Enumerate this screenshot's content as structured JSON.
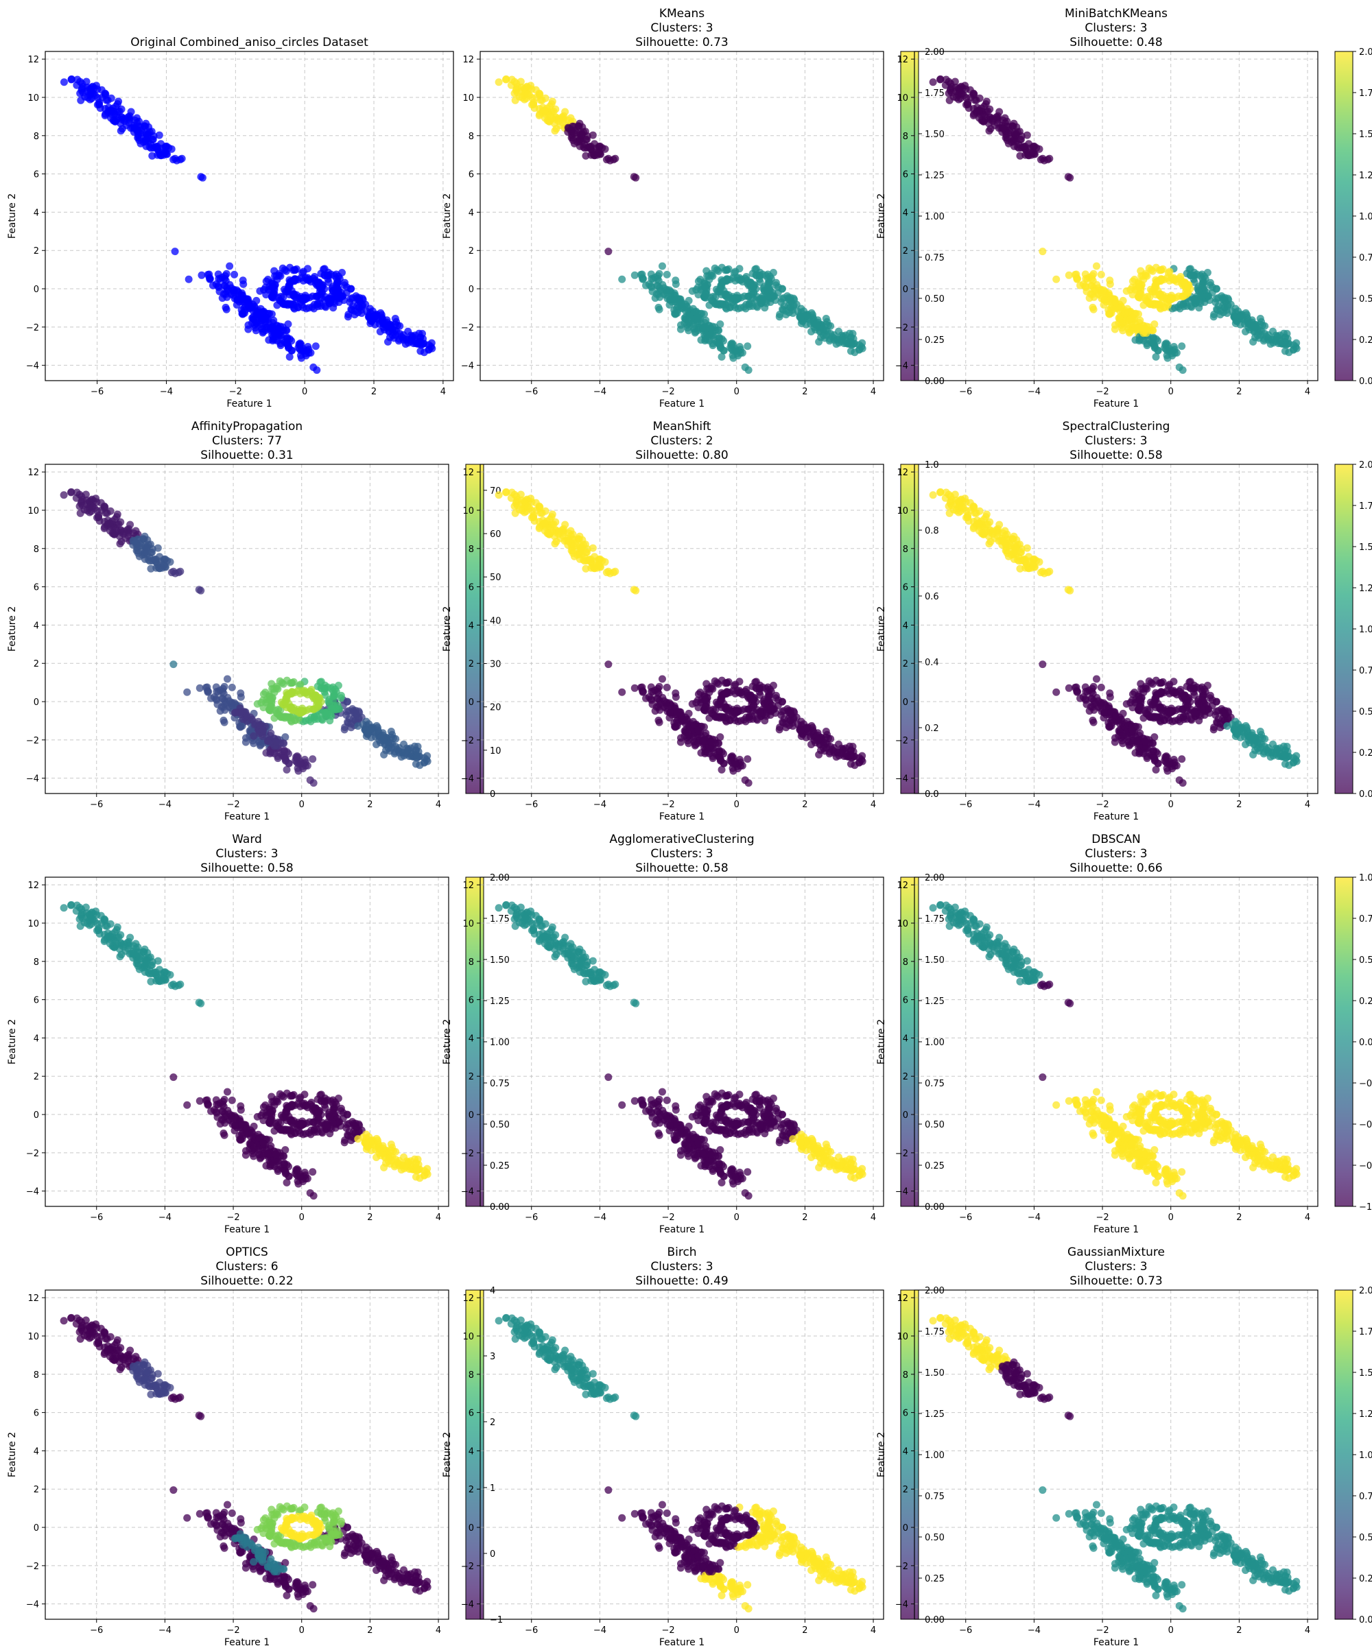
{
  "figure": {
    "cmap": "viridis",
    "point_alpha": 0.75,
    "grid": true,
    "grid_style": "dashed"
  },
  "chart_data": [
    {
      "type": "scatter",
      "title_lines": [
        "Original Combined_aniso_circles Dataset"
      ],
      "xlabel": "Feature 1",
      "ylabel": "Feature 2",
      "xlim": [
        -7.5,
        4.3
      ],
      "ylim": [
        -4.8,
        12.4
      ],
      "xticks": [
        -6,
        -4,
        -2,
        0,
        2,
        4
      ],
      "yticks": [
        -4,
        -2,
        0,
        2,
        4,
        6,
        8,
        10,
        12
      ],
      "single_color": "#0000ff",
      "colorbar": null,
      "assign": {
        "ul": 0,
        "nm": 0,
        "ml": 0,
        "ll": 0,
        "rl": 0,
        "ru": 0,
        "rr": 0,
        "ol": 0,
        "or": 0,
        "inn": 0,
        "iso": 0,
        "bot": 0
      }
    },
    {
      "type": "scatter",
      "title_lines": [
        "KMeans",
        "Clusters: 3",
        "Silhouette: 0.73"
      ],
      "xlabel": "Feature 1",
      "ylabel": "Feature 2",
      "xlim": [
        -7.5,
        4.3
      ],
      "ylim": [
        -4.8,
        12.4
      ],
      "xticks": [
        -6,
        -4,
        -2,
        0,
        2,
        4
      ],
      "yticks": [
        -4,
        -2,
        0,
        2,
        4,
        6,
        8,
        10,
        12
      ],
      "colorbar": {
        "min": 0,
        "max": 2,
        "ticks": [
          "0.00",
          "0.25",
          "0.50",
          "0.75",
          "1.00",
          "1.25",
          "1.50",
          "1.75",
          "2.00"
        ]
      },
      "assign": {
        "ul": 2,
        "nm": 0,
        "ml": 0,
        "ll": 1,
        "rl": 1,
        "ru": 1,
        "rr": 1,
        "ol": 1,
        "or": 1,
        "inn": 1,
        "iso": 0,
        "bot": 1
      }
    },
    {
      "type": "scatter",
      "title_lines": [
        "MiniBatchKMeans",
        "Clusters: 3",
        "Silhouette: 0.48"
      ],
      "xlabel": "Feature 1",
      "ylabel": "Feature 2",
      "xlim": [
        -7.5,
        4.3
      ],
      "ylim": [
        -4.8,
        12.4
      ],
      "xticks": [
        -6,
        -4,
        -2,
        0,
        2,
        4
      ],
      "yticks": [
        -4,
        -2,
        0,
        2,
        4,
        6,
        8,
        10,
        12
      ],
      "colorbar": {
        "min": 0,
        "max": 2,
        "ticks": [
          "0.00",
          "0.25",
          "0.50",
          "0.75",
          "1.00",
          "1.25",
          "1.50",
          "1.75",
          "2.00"
        ]
      },
      "assign": {
        "ul": 0,
        "nm": 0,
        "ml": 0,
        "ll": 2,
        "rl": 2,
        "ru": 1,
        "rr": 1,
        "ol": 2,
        "or": 1,
        "inn": 2,
        "iso": 2,
        "bot": 1
      }
    },
    {
      "type": "scatter",
      "title_lines": [
        "AffinityPropagation",
        "Clusters: 77",
        "Silhouette: 0.31"
      ],
      "xlabel": "Feature 1",
      "ylabel": "Feature 2",
      "xlim": [
        -7.5,
        4.3
      ],
      "ylim": [
        -4.8,
        12.4
      ],
      "xticks": [
        -6,
        -4,
        -2,
        0,
        2,
        4
      ],
      "yticks": [
        -4,
        -2,
        0,
        2,
        4,
        6,
        8,
        10,
        12
      ],
      "colorbar": {
        "min": 0,
        "max": 76,
        "ticks": [
          "0",
          "10",
          "20",
          "30",
          "40",
          "50",
          "60",
          "70"
        ]
      },
      "assign": {
        "ul": 5,
        "nm": 20,
        "ml": 12,
        "ll": 18,
        "rl": 12,
        "ru": 15,
        "rr": 22,
        "ol": 58,
        "or": 52,
        "inn": 66,
        "iso": 30,
        "bot": 8
      }
    },
    {
      "type": "scatter",
      "title_lines": [
        "MeanShift",
        "Clusters: 2",
        "Silhouette: 0.80"
      ],
      "xlabel": "Feature 1",
      "ylabel": "Feature 2",
      "xlim": [
        -7.5,
        4.3
      ],
      "ylim": [
        -4.8,
        12.4
      ],
      "xticks": [
        -6,
        -4,
        -2,
        0,
        2,
        4
      ],
      "yticks": [
        -4,
        -2,
        0,
        2,
        4,
        6,
        8,
        10,
        12
      ],
      "colorbar": {
        "min": 0,
        "max": 1,
        "ticks": [
          "0.0",
          "0.2",
          "0.4",
          "0.6",
          "0.8",
          "1.0"
        ]
      },
      "assign": {
        "ul": 1,
        "nm": 1,
        "ml": 1,
        "ll": 0,
        "rl": 0,
        "ru": 0,
        "rr": 0,
        "ol": 0,
        "or": 0,
        "inn": 0,
        "iso": 0,
        "bot": 0
      }
    },
    {
      "type": "scatter",
      "title_lines": [
        "SpectralClustering",
        "Clusters: 3",
        "Silhouette: 0.58"
      ],
      "xlabel": "Feature 1",
      "ylabel": "Feature 2",
      "xlim": [
        -7.5,
        4.3
      ],
      "ylim": [
        -4.8,
        12.4
      ],
      "xticks": [
        -6,
        -4,
        -2,
        0,
        2,
        4
      ],
      "yticks": [
        -4,
        -2,
        0,
        2,
        4,
        6,
        8,
        10,
        12
      ],
      "colorbar": {
        "min": 0,
        "max": 2,
        "ticks": [
          "0.00",
          "0.25",
          "0.50",
          "0.75",
          "1.00",
          "1.25",
          "1.50",
          "1.75",
          "2.00"
        ]
      },
      "assign": {
        "ul": 2,
        "nm": 2,
        "ml": 2,
        "ll": 0,
        "rl": 0,
        "ru": 0,
        "rr": 1,
        "ol": 0,
        "or": 0,
        "inn": 0,
        "iso": 0,
        "bot": 0
      }
    },
    {
      "type": "scatter",
      "title_lines": [
        "Ward",
        "Clusters: 3",
        "Silhouette: 0.58"
      ],
      "xlabel": "Feature 1",
      "ylabel": "Feature 2",
      "xlim": [
        -7.5,
        4.3
      ],
      "ylim": [
        -4.8,
        12.4
      ],
      "xticks": [
        -6,
        -4,
        -2,
        0,
        2,
        4
      ],
      "yticks": [
        -4,
        -2,
        0,
        2,
        4,
        6,
        8,
        10,
        12
      ],
      "colorbar": {
        "min": 0,
        "max": 2,
        "ticks": [
          "0.00",
          "0.25",
          "0.50",
          "0.75",
          "1.00",
          "1.25",
          "1.50",
          "1.75",
          "2.00"
        ]
      },
      "assign": {
        "ul": 1,
        "nm": 1,
        "ml": 1,
        "ll": 0,
        "rl": 0,
        "ru": 0,
        "rr": 2,
        "ol": 0,
        "or": 0,
        "inn": 0,
        "iso": 0,
        "bot": 0
      }
    },
    {
      "type": "scatter",
      "title_lines": [
        "AgglomerativeClustering",
        "Clusters: 3",
        "Silhouette: 0.58"
      ],
      "xlabel": "Feature 1",
      "ylabel": "Feature 2",
      "xlim": [
        -7.5,
        4.3
      ],
      "ylim": [
        -4.8,
        12.4
      ],
      "xticks": [
        -6,
        -4,
        -2,
        0,
        2,
        4
      ],
      "yticks": [
        -4,
        -2,
        0,
        2,
        4,
        6,
        8,
        10,
        12
      ],
      "colorbar": {
        "min": 0,
        "max": 2,
        "ticks": [
          "0.00",
          "0.25",
          "0.50",
          "0.75",
          "1.00",
          "1.25",
          "1.50",
          "1.75",
          "2.00"
        ]
      },
      "assign": {
        "ul": 1,
        "nm": 1,
        "ml": 1,
        "ll": 0,
        "rl": 0,
        "ru": 0,
        "rr": 2,
        "ol": 0,
        "or": 0,
        "inn": 0,
        "iso": 0,
        "bot": 0
      }
    },
    {
      "type": "scatter",
      "title_lines": [
        "DBSCAN",
        "Clusters: 3",
        "Silhouette: 0.66"
      ],
      "xlabel": "Feature 1",
      "ylabel": "Feature 2",
      "xlim": [
        -7.5,
        4.3
      ],
      "ylim": [
        -4.8,
        12.4
      ],
      "xticks": [
        -6,
        -4,
        -2,
        0,
        2,
        4
      ],
      "yticks": [
        -4,
        -2,
        0,
        2,
        4,
        6,
        8,
        10,
        12
      ],
      "colorbar": {
        "min": -1,
        "max": 1,
        "ticks": [
          "-1.00",
          "-0.75",
          "-0.50",
          "-0.25",
          "0.00",
          "0.25",
          "0.50",
          "0.75",
          "1.00"
        ]
      },
      "assign": {
        "ul": 0,
        "nm": 0,
        "ml": -1,
        "ll": 1,
        "rl": 1,
        "ru": 1,
        "rr": 1,
        "ol": 1,
        "or": 1,
        "inn": 1,
        "iso": -1,
        "bot": 1
      }
    },
    {
      "type": "scatter",
      "title_lines": [
        "OPTICS",
        "Clusters: 6",
        "Silhouette: 0.22"
      ],
      "xlabel": "Feature 1",
      "ylabel": "Feature 2",
      "xlim": [
        -7.5,
        4.3
      ],
      "ylim": [
        -4.8,
        12.4
      ],
      "xticks": [
        -6,
        -4,
        -2,
        0,
        2,
        4
      ],
      "yticks": [
        -4,
        -2,
        0,
        2,
        4,
        6,
        8,
        10,
        12
      ],
      "colorbar": {
        "min": -1,
        "max": 4,
        "ticks": [
          "-1",
          "0",
          "1",
          "2",
          "3",
          "4"
        ]
      },
      "assign": {
        "ul": -1,
        "nm": 0,
        "ml": -1,
        "ll": -1,
        "rl": 1,
        "ru": -1,
        "rr": -1,
        "ol": 3,
        "or": 3,
        "inn": 4,
        "iso": -1,
        "bot": -1
      }
    },
    {
      "type": "scatter",
      "title_lines": [
        "Birch",
        "Clusters: 3",
        "Silhouette: 0.49"
      ],
      "xlabel": "Feature 1",
      "ylabel": "Feature 2",
      "xlim": [
        -7.5,
        4.3
      ],
      "ylim": [
        -4.8,
        12.4
      ],
      "xticks": [
        -6,
        -4,
        -2,
        0,
        2,
        4
      ],
      "yticks": [
        -4,
        -2,
        0,
        2,
        4,
        6,
        8,
        10,
        12
      ],
      "colorbar": {
        "min": 0,
        "max": 2,
        "ticks": [
          "0.00",
          "0.25",
          "0.50",
          "0.75",
          "1.00",
          "1.25",
          "1.50",
          "1.75",
          "2.00"
        ]
      },
      "assign": {
        "ul": 1,
        "nm": 1,
        "ml": 1,
        "ll": 0,
        "rl": 0,
        "ru": 2,
        "rr": 2,
        "ol": 0,
        "or": 2,
        "inn": 0,
        "iso": 0,
        "bot": 2
      }
    },
    {
      "type": "scatter",
      "title_lines": [
        "GaussianMixture",
        "Clusters: 3",
        "Silhouette: 0.73"
      ],
      "xlabel": "Feature 1",
      "ylabel": "Feature 2",
      "xlim": [
        -7.5,
        4.3
      ],
      "ylim": [
        -4.8,
        12.4
      ],
      "xticks": [
        -6,
        -4,
        -2,
        0,
        2,
        4
      ],
      "yticks": [
        -4,
        -2,
        0,
        2,
        4,
        6,
        8,
        10,
        12
      ],
      "colorbar": {
        "min": 0,
        "max": 2,
        "ticks": [
          "0.00",
          "0.25",
          "0.50",
          "0.75",
          "1.00",
          "1.25",
          "1.50",
          "1.75",
          "2.00"
        ]
      },
      "assign": {
        "ul": 2,
        "nm": 0,
        "ml": 0,
        "ll": 1,
        "rl": 1,
        "ru": 1,
        "rr": 1,
        "ol": 1,
        "or": 1,
        "inn": 1,
        "iso": 1,
        "bot": 1
      }
    }
  ]
}
